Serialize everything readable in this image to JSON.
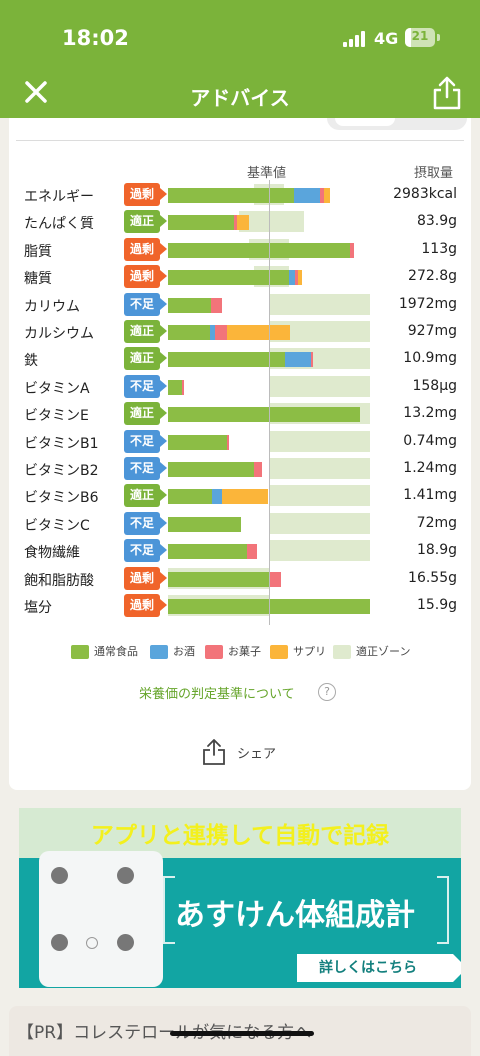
{
  "status": {
    "time": "18:02",
    "network": "4G",
    "battery": "21"
  },
  "header": {
    "title": "アドバイス"
  },
  "table": {
    "base_label": "基準値",
    "intake_label": "摂取量",
    "rows": [
      {
        "name": "エネルギー",
        "status": "過剰",
        "value": "2983kcal"
      },
      {
        "name": "たんぱく質",
        "status": "適正",
        "value": "83.9g"
      },
      {
        "name": "脂質",
        "status": "過剰",
        "value": "113g"
      },
      {
        "name": "糖質",
        "status": "過剰",
        "value": "272.8g"
      },
      {
        "name": "カリウム",
        "status": "不足",
        "value": "1972mg"
      },
      {
        "name": "カルシウム",
        "status": "適正",
        "value": "927mg"
      },
      {
        "name": "鉄",
        "status": "適正",
        "value": "10.9mg"
      },
      {
        "name": "ビタミンA",
        "status": "不足",
        "value": "158µg"
      },
      {
        "name": "ビタミンE",
        "status": "適正",
        "value": "13.2mg"
      },
      {
        "name": "ビタミンB1",
        "status": "不足",
        "value": "0.74mg"
      },
      {
        "name": "ビタミンB2",
        "status": "不足",
        "value": "1.24mg"
      },
      {
        "name": "ビタミンB6",
        "status": "適正",
        "value": "1.41mg"
      },
      {
        "name": "ビタミンC",
        "status": "不足",
        "value": "72mg"
      },
      {
        "name": "食物繊維",
        "status": "不足",
        "value": "18.9g"
      },
      {
        "name": "飽和脂肪酸",
        "status": "過剰",
        "value": "16.55g"
      },
      {
        "name": "塩分",
        "status": "過剰",
        "value": "15.9g"
      }
    ]
  },
  "chart_data": {
    "type": "bar",
    "stacked": true,
    "unit": "% of reference value",
    "categories": [
      "エネルギー",
      "たんぱく質",
      "脂質",
      "糖質",
      "カリウム",
      "カルシウム",
      "鉄",
      "ビタミンA",
      "ビタミンE",
      "ビタミンB1",
      "ビタミンB2",
      "ビタミンB6",
      "ビタミンC",
      "食物繊維",
      "飽和脂肪酸",
      "塩分"
    ],
    "series": [
      {
        "name": "通常食品",
        "color": "#8cbd45",
        "values": [
          125,
          65,
          180,
          120,
          43,
          42,
          116,
          14,
          190,
          58,
          85,
          44,
          72,
          78,
          100,
          200
        ]
      },
      {
        "name": "お酒",
        "color": "#5aa5dc",
        "values": [
          25,
          0,
          0,
          6,
          0,
          5,
          26,
          0,
          0,
          0,
          0,
          9,
          0,
          0,
          0,
          0
        ]
      },
      {
        "name": "お菓子",
        "color": "#f2747a",
        "values": [
          4,
          3,
          4,
          3,
          10,
          11,
          2,
          2,
          0,
          2,
          8,
          0,
          0,
          10,
          12,
          0
        ]
      },
      {
        "name": "サプリ",
        "color": "#fbb53a",
        "values": [
          6,
          12,
          0,
          4,
          0,
          63,
          0,
          0,
          0,
          0,
          0,
          46,
          0,
          0,
          0,
          0
        ]
      }
    ],
    "ok_zone": [
      [
        85,
        115
      ],
      [
        70,
        135
      ],
      [
        80,
        120
      ],
      [
        85,
        120
      ],
      [
        100,
        200
      ],
      [
        100,
        200
      ],
      [
        100,
        200
      ],
      [
        100,
        200
      ],
      [
        100,
        200
      ],
      [
        100,
        200
      ],
      [
        100,
        200
      ],
      [
        100,
        200
      ],
      [
        100,
        200
      ],
      [
        100,
        200
      ],
      [
        0,
        100
      ],
      [
        0,
        100
      ]
    ],
    "reference_line": 100
  },
  "legend": [
    {
      "label": "通常食品",
      "color": "#8cbd45"
    },
    {
      "label": "お酒",
      "color": "#5aa5dc"
    },
    {
      "label": "お菓子",
      "color": "#f2747a"
    },
    {
      "label": "サプリ",
      "color": "#fbb53a"
    },
    {
      "label": "適正ゾーン",
      "color": "#dfeace"
    }
  ],
  "links": {
    "criteria": "栄養価の判定基準について",
    "share": "シェア"
  },
  "banner": {
    "headline": "アプリと連携して自動で記録",
    "product": "あすけん体組成計",
    "button": "詳しくはこちら"
  },
  "pr": {
    "title": "【PR】コレステロールが気になる方へ"
  }
}
